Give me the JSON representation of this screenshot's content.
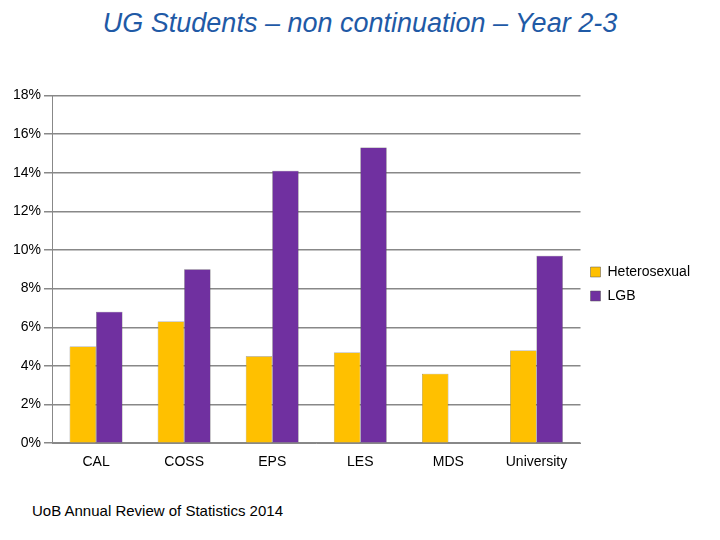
{
  "chart_data": {
    "type": "bar",
    "title": "UG Students – non continuation – Year 2-3",
    "categories": [
      "CAL",
      "COSS",
      "EPS",
      "LES",
      "MDS",
      "University"
    ],
    "series": [
      {
        "name": "Heterosexual",
        "color": "#ffc000",
        "values": [
          5.0,
          6.3,
          4.5,
          4.7,
          3.6,
          4.8
        ]
      },
      {
        "name": "LGB",
        "color": "#7030a0",
        "values": [
          6.8,
          9.0,
          14.1,
          15.3,
          null,
          9.7
        ]
      }
    ],
    "ylim": [
      0,
      18
    ],
    "yticks": [
      {
        "value": 0,
        "label": "0%"
      },
      {
        "value": 2,
        "label": "2%"
      },
      {
        "value": 4,
        "label": "4%"
      },
      {
        "value": 6,
        "label": "6%"
      },
      {
        "value": 8,
        "label": "8%"
      },
      {
        "value": 10,
        "label": "10%"
      },
      {
        "value": 12,
        "label": "12%"
      },
      {
        "value": 14,
        "label": "14%"
      },
      {
        "value": 16,
        "label": "16%"
      },
      {
        "value": 18,
        "label": "18%"
      }
    ],
    "grid": true,
    "legend": "right",
    "annotations": [
      "UoB Annual Review of Statistics 2014"
    ]
  }
}
